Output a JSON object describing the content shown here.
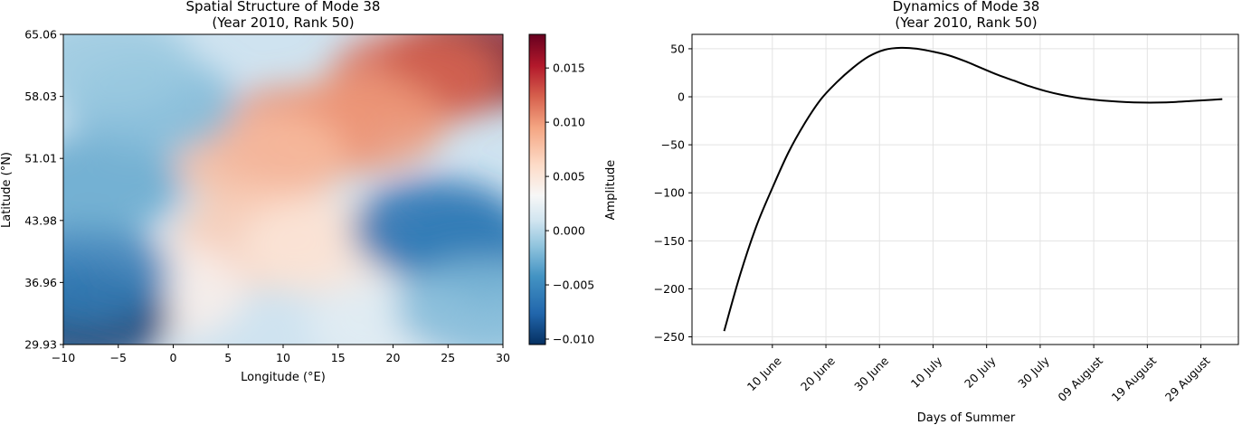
{
  "chart_data": [
    {
      "type": "heatmap",
      "title": "Spatial Structure of Mode 38",
      "subtitle": "(Year 2010, Rank 50)",
      "xlabel": "Longitude (°E)",
      "ylabel": "Latitude (°N)",
      "xlim": [
        -10,
        30
      ],
      "ylim": [
        29.93,
        65.06
      ],
      "xticks": [
        -10,
        -5,
        0,
        5,
        10,
        15,
        20,
        25,
        30
      ],
      "xtick_labels": [
        "−10",
        "−5",
        "0",
        "5",
        "10",
        "15",
        "20",
        "25",
        "30"
      ],
      "yticks": [
        29.93,
        36.96,
        43.98,
        51.01,
        58.03,
        65.06
      ],
      "ytick_labels": [
        "29.93",
        "36.96",
        "43.98",
        "51.01",
        "58.03",
        "65.06"
      ],
      "colormap": "RdBu_r",
      "colorbar": {
        "label": "Amplitude",
        "range": [
          -0.0105,
          0.0181
        ],
        "ticks": [
          -0.01,
          -0.005,
          0.0,
          0.005,
          0.01,
          0.015
        ],
        "tick_labels": [
          "−0.010",
          "−0.005",
          "0.000",
          "0.005",
          "0.010",
          "0.015"
        ]
      },
      "features": [
        {
          "lon": 27,
          "lat": 62,
          "amplitude": 0.017
        },
        {
          "lon": 22,
          "lat": 60,
          "amplitude": 0.012
        },
        {
          "lon": 11,
          "lat": 53.5,
          "amplitude": 0.011
        },
        {
          "lon": 17,
          "lat": 55,
          "amplitude": 0.01
        },
        {
          "lon": 8,
          "lat": 51,
          "amplitude": 0.008
        },
        {
          "lon": 8,
          "lat": 42,
          "amplitude": 0.007
        },
        {
          "lon": 14,
          "lat": 41,
          "amplitude": 0.005
        },
        {
          "lon": -1,
          "lat": 36,
          "amplitude": 0.004
        },
        {
          "lon": 24,
          "lat": 43,
          "amplitude": -0.007
        },
        {
          "lon": 27,
          "lat": 40,
          "amplitude": -0.006
        },
        {
          "lon": -8,
          "lat": 33,
          "amplitude": -0.01
        },
        {
          "lon": -8,
          "lat": 38,
          "amplitude": -0.006
        },
        {
          "lon": -7,
          "lat": 48,
          "amplitude": -0.003
        },
        {
          "lon": -2,
          "lat": 57,
          "amplitude": -0.002
        },
        {
          "lon": -6,
          "lat": 62,
          "amplitude": -0.001
        },
        {
          "lon": 20,
          "lat": 32,
          "amplitude": 0.002
        },
        {
          "lon": 28,
          "lat": 34,
          "amplitude": -0.002
        }
      ]
    },
    {
      "type": "line",
      "title": "Dynamics of Mode 38",
      "subtitle": "(Year 2010, Rank 50)",
      "xlabel": "Days of Summer",
      "ylabel": "",
      "grid": true,
      "xlim": [
        -6,
        96
      ],
      "ylim": [
        -258,
        65
      ],
      "yticks": [
        -250,
        -200,
        -150,
        -100,
        -50,
        0,
        50
      ],
      "ytick_labels": [
        "−250",
        "−200",
        "−150",
        "−100",
        "−50",
        "0",
        "50"
      ],
      "xticks": [
        9,
        19,
        29,
        39,
        49,
        59,
        69,
        79,
        89
      ],
      "xtick_labels": [
        "10 June",
        "20 June",
        "30 June",
        "10 July",
        "20 July",
        "30 July",
        "09 August",
        "19 August",
        "29 August"
      ],
      "series": [
        {
          "color": "#000000",
          "x": [
            0,
            3,
            6,
            9,
            12,
            15,
            18,
            21,
            24,
            27,
            30,
            33,
            36,
            39,
            42,
            45,
            48,
            51,
            54,
            57,
            60,
            63,
            66,
            69,
            72,
            75,
            78,
            81,
            84,
            87,
            90,
            93
          ],
          "y": [
            -244,
            -185,
            -135,
            -95,
            -58,
            -28,
            -3,
            15,
            30,
            42,
            49,
            51,
            50,
            47,
            43,
            37,
            30,
            23,
            17,
            11,
            6,
            2,
            -1,
            -3,
            -4.5,
            -5.5,
            -6,
            -6,
            -5.5,
            -4.5,
            -3.5,
            -2.5
          ]
        }
      ]
    }
  ]
}
